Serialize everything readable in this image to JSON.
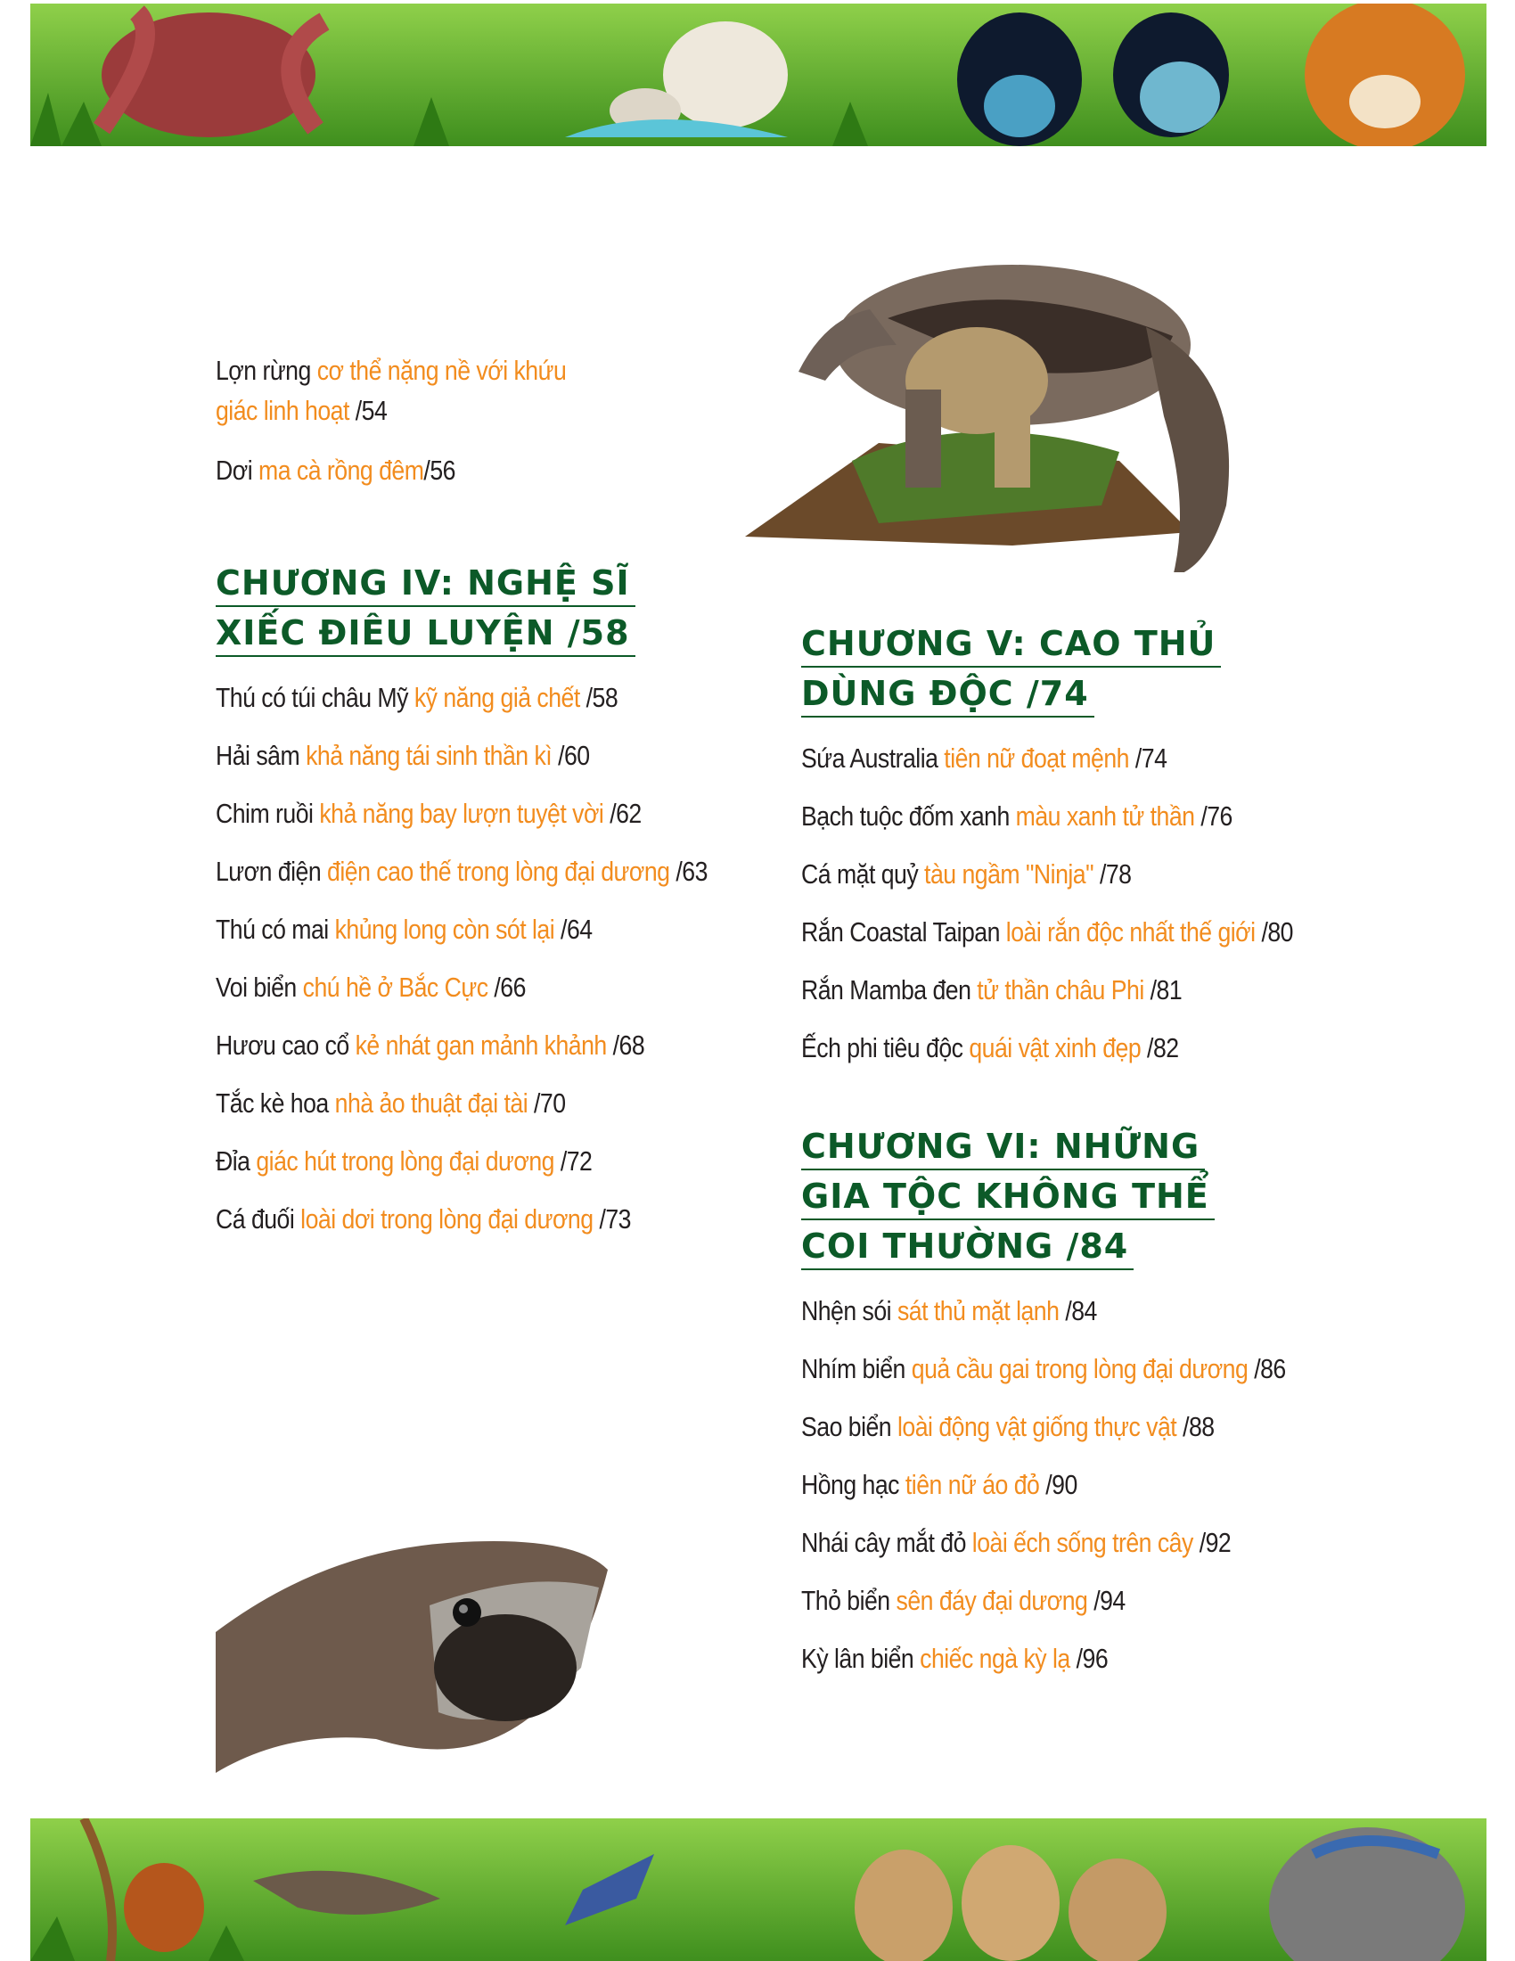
{
  "left": {
    "intro_items": [
      {
        "title": "Lợn rừng",
        "subtitle": "cơ thể nặng nề với khứu giác linh hoạt",
        "page": "/54"
      },
      {
        "title": "Dơi",
        "subtitle": "ma cà rồng đêm",
        "page": "/56"
      }
    ],
    "chapter4": {
      "heading_lines": [
        "CHƯƠNG IV: NGHỆ SĨ",
        "XIẾC ĐIÊU LUYỆN /58"
      ],
      "items": [
        {
          "title": "Thú có túi châu Mỹ",
          "subtitle": "kỹ năng giả chết",
          "page": "/58"
        },
        {
          "title": "Hải sâm",
          "subtitle": "khả năng tái sinh thần kì",
          "page": "/60"
        },
        {
          "title": "Chim ruồi",
          "subtitle": "khả năng bay lượn tuyệt vời",
          "page": "/62"
        },
        {
          "title": "Lươn điện",
          "subtitle": "điện cao thế trong lòng đại dương",
          "page": "/63"
        },
        {
          "title": "Thú có mai",
          "subtitle": "khủng long còn sót lại",
          "page": "/64"
        },
        {
          "title": "Voi biển",
          "subtitle": "chú hề ở Bắc Cực",
          "page": "/66"
        },
        {
          "title": "Hươu cao cổ",
          "subtitle": "kẻ nhát gan mảnh khảnh",
          "page": "/68"
        },
        {
          "title": "Tắc kè hoa",
          "subtitle": "nhà ảo thuật đại tài",
          "page": "/70"
        },
        {
          "title": "Đỉa",
          "subtitle": "giác hút trong lòng đại dương",
          "page": "/72"
        },
        {
          "title": "Cá đuối",
          "subtitle": "loài dơi trong lòng đại dương",
          "page": "/73"
        }
      ]
    }
  },
  "right": {
    "chapter5": {
      "heading_lines": [
        "CHƯƠNG V: CAO THỦ",
        "DÙNG ĐỘC /74"
      ],
      "items": [
        {
          "title": "Sứa Australia",
          "subtitle": "tiên nữ đoạt mệnh",
          "page": "/74"
        },
        {
          "title": "Bạch tuộc đốm xanh",
          "subtitle": "màu xanh tử thần",
          "page": "/76"
        },
        {
          "title": "Cá mặt quỷ",
          "subtitle": "tàu ngầm \"Ninja\"",
          "page": "/78"
        },
        {
          "title": "Rắn Coastal Taipan",
          "subtitle": "loài rắn độc nhất thế giới",
          "page": "/80"
        },
        {
          "title": "Rắn Mamba đen",
          "subtitle": "tử thần châu Phi",
          "page": "/81"
        },
        {
          "title": "Ếch phi tiêu độc",
          "subtitle": "quái vật xinh đẹp",
          "page": "/82"
        }
      ]
    },
    "chapter6": {
      "heading_lines": [
        "CHƯƠNG VI: NHỮNG",
        "GIA TỘC KHÔNG THỂ",
        "COI THƯỜNG /84"
      ],
      "items": [
        {
          "title": "Nhện sói",
          "subtitle": "sát thủ mặt lạnh",
          "page": "/84"
        },
        {
          "title": "Nhím biển",
          "subtitle": "quả cầu gai trong lòng đại dương",
          "page": "/86"
        },
        {
          "title": "Sao biển",
          "subtitle": "loài động vật giống thực vật",
          "page": "/88"
        },
        {
          "title": "Hồng hạc",
          "subtitle": "tiên nữ áo đỏ",
          "page": "/90"
        },
        {
          "title": "Nhái cây mắt đỏ",
          "subtitle": "loài ếch sống trên cây",
          "page": "/92"
        },
        {
          "title": "Thỏ biển",
          "subtitle": "sên đáy đại dương",
          "page": "/94"
        },
        {
          "title": "Kỳ lân biển",
          "subtitle": "chiếc ngà kỳ lạ",
          "page": "/96"
        }
      ]
    }
  },
  "colors": {
    "heading": "#0c5a28",
    "subtitle": "#f28c1e",
    "text": "#231f20",
    "banner_green": "#5fae2e"
  }
}
